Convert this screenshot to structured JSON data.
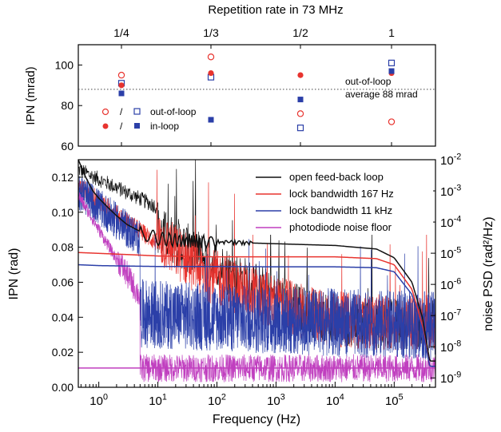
{
  "chart_data": [
    {
      "type": "scatter",
      "title": "Repetition rate in 73 MHz",
      "ylabel": "IPN (mrad)",
      "categories": [
        "1/4",
        "1/3",
        "1/2",
        "1"
      ],
      "ylim": [
        60,
        110
      ],
      "yticks": [
        "60",
        "80",
        "100"
      ],
      "series": [
        {
          "name": "out-of-loop",
          "marker": "open-circle",
          "color": "#e8342f",
          "values": [
            95,
            104,
            76,
            72
          ]
        },
        {
          "name": "out-of-loop",
          "marker": "open-square",
          "color": "#2b3fa8",
          "values": [
            91,
            94,
            69,
            101
          ]
        },
        {
          "name": "in-loop",
          "marker": "filled-circle",
          "color": "#e8342f",
          "values": [
            90,
            96,
            95,
            96
          ]
        },
        {
          "name": "in-loop",
          "marker": "filled-square",
          "color": "#2b3fa8",
          "values": [
            86,
            73,
            83,
            97
          ]
        }
      ],
      "legend_separator": "/",
      "reference_line": {
        "value": 88,
        "style": "dotted"
      },
      "annotation": [
        "out-of-loop",
        "average 88 mrad"
      ],
      "legend": "left-center"
    },
    {
      "type": "line",
      "xlabel": "Frequency (Hz)",
      "ylabel": "IPN (rad)",
      "y2label": "noise PSD (rad²/Hz)",
      "x_scale": "log",
      "xlim": [
        0.45,
        500000
      ],
      "ylim": [
        0,
        0.13
      ],
      "y2lim": [
        5e-10,
        0.01
      ],
      "y2_scale": "log",
      "xticks": [
        "10^0",
        "10^1",
        "10^2",
        "10^3",
        "10^4",
        "10^5"
      ],
      "yticks": [
        "0.00",
        "0.02",
        "0.04",
        "0.06",
        "0.08",
        "0.10",
        "0.12"
      ],
      "y2ticks": [
        "10^-9",
        "10^-8",
        "10^-7",
        "10^-6",
        "10^-5",
        "10^-4",
        "10^-3",
        "10^-2"
      ],
      "legend": "top-right",
      "series": [
        {
          "name": "open feed-back loop",
          "color": "#111111",
          "axis": "left",
          "x": [
            0.45,
            0.6,
            0.8,
            1,
            1.5,
            2,
            3,
            5,
            8,
            10,
            20,
            50,
            100,
            1000,
            10000,
            50000,
            100000,
            200000,
            300000,
            400000
          ],
          "y": [
            0.13,
            0.12,
            0.112,
            0.108,
            0.102,
            0.098,
            0.093,
            0.089,
            0.086,
            0.085,
            0.084,
            0.0835,
            0.083,
            0.082,
            0.081,
            0.079,
            0.074,
            0.06,
            0.04,
            0.015
          ]
        },
        {
          "name": "lock bandwidth 167 Hz",
          "color": "#e8342f",
          "axis": "left",
          "x": [
            0.45,
            1,
            5,
            10,
            100,
            1000,
            10000,
            50000,
            100000,
            200000,
            300000,
            400000
          ],
          "y": [
            0.077,
            0.0765,
            0.0755,
            0.075,
            0.0745,
            0.0745,
            0.0745,
            0.0735,
            0.07,
            0.056,
            0.035,
            0.012
          ]
        },
        {
          "name": "lock bandwidth 11 kHz",
          "color": "#2b3fa8",
          "axis": "left",
          "x": [
            0.45,
            1,
            10,
            100,
            1000,
            10000,
            50000,
            100000,
            200000,
            300000,
            400000
          ],
          "y": [
            0.07,
            0.0695,
            0.069,
            0.069,
            0.0688,
            0.0688,
            0.0683,
            0.066,
            0.053,
            0.033,
            0.012
          ]
        },
        {
          "name": "photodiode noise floor",
          "color": "#c03fbf",
          "axis": "left",
          "x": [
            0.45,
            1,
            5,
            10,
            100,
            1000,
            10000,
            100000,
            400000
          ],
          "y": [
            0.011,
            0.011,
            0.011,
            0.011,
            0.011,
            0.011,
            0.011,
            0.011,
            0.011
          ]
        }
      ]
    }
  ]
}
